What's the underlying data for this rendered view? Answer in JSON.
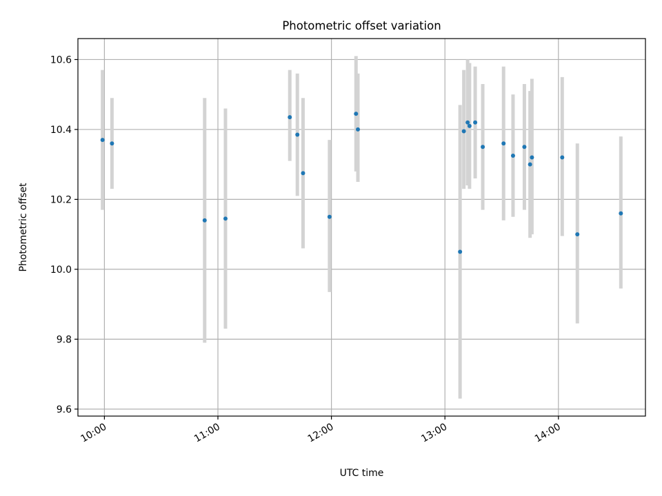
{
  "chart_data": {
    "type": "scatter",
    "title": "Photometric offset variation",
    "xlabel": "UTC time",
    "ylabel": "Photometric offset",
    "xlim": [
      "09:46",
      "14:46"
    ],
    "ylim": [
      9.58,
      10.66
    ],
    "xticks": [
      "10:00",
      "11:00",
      "12:00",
      "13:00",
      "14:00"
    ],
    "yticks": [
      9.6,
      9.8,
      10.0,
      10.2,
      10.4,
      10.6
    ],
    "ytick_labels": [
      "9.6",
      "9.8",
      "10.0",
      "10.2",
      "10.4",
      "10.6"
    ],
    "grid": true,
    "colors": {
      "point": "#1f77b4",
      "errorbar": "#d3d3d3",
      "grid": "#b0b0b0"
    },
    "points": [
      {
        "t": "09:59",
        "y": 10.37,
        "lo": 10.17,
        "hi": 10.57
      },
      {
        "t": "10:04",
        "y": 10.36,
        "lo": 10.23,
        "hi": 10.49
      },
      {
        "t": "10:53",
        "y": 10.14,
        "lo": 9.79,
        "hi": 10.49
      },
      {
        "t": "11:04",
        "y": 10.145,
        "lo": 9.83,
        "hi": 10.46
      },
      {
        "t": "11:38",
        "y": 10.435,
        "lo": 10.31,
        "hi": 10.57
      },
      {
        "t": "11:42",
        "y": 10.385,
        "lo": 10.21,
        "hi": 10.56
      },
      {
        "t": "11:45",
        "y": 10.275,
        "lo": 10.06,
        "hi": 10.49
      },
      {
        "t": "11:59",
        "y": 10.15,
        "lo": 9.935,
        "hi": 10.37
      },
      {
        "t": "12:13",
        "y": 10.445,
        "lo": 10.28,
        "hi": 10.61
      },
      {
        "t": "12:14",
        "y": 10.4,
        "lo": 10.25,
        "hi": 10.56
      },
      {
        "t": "13:08",
        "y": 10.05,
        "lo": 9.63,
        "hi": 10.47
      },
      {
        "t": "13:10",
        "y": 10.395,
        "lo": 10.23,
        "hi": 10.57
      },
      {
        "t": "13:12",
        "y": 10.42,
        "lo": 10.24,
        "hi": 10.6
      },
      {
        "t": "13:13",
        "y": 10.41,
        "lo": 10.23,
        "hi": 10.59
      },
      {
        "t": "13:16",
        "y": 10.42,
        "lo": 10.26,
        "hi": 10.58
      },
      {
        "t": "13:20",
        "y": 10.35,
        "lo": 10.17,
        "hi": 10.53
      },
      {
        "t": "13:31",
        "y": 10.36,
        "lo": 10.14,
        "hi": 10.58
      },
      {
        "t": "13:36",
        "y": 10.325,
        "lo": 10.15,
        "hi": 10.5
      },
      {
        "t": "13:42",
        "y": 10.35,
        "lo": 10.17,
        "hi": 10.53
      },
      {
        "t": "13:45",
        "y": 10.3,
        "lo": 10.09,
        "hi": 10.51
      },
      {
        "t": "13:46",
        "y": 10.32,
        "lo": 10.1,
        "hi": 10.545
      },
      {
        "t": "14:02",
        "y": 10.32,
        "lo": 10.095,
        "hi": 10.55
      },
      {
        "t": "14:10",
        "y": 10.1,
        "lo": 9.845,
        "hi": 10.36
      },
      {
        "t": "14:33",
        "y": 10.16,
        "lo": 9.945,
        "hi": 10.38
      }
    ]
  }
}
